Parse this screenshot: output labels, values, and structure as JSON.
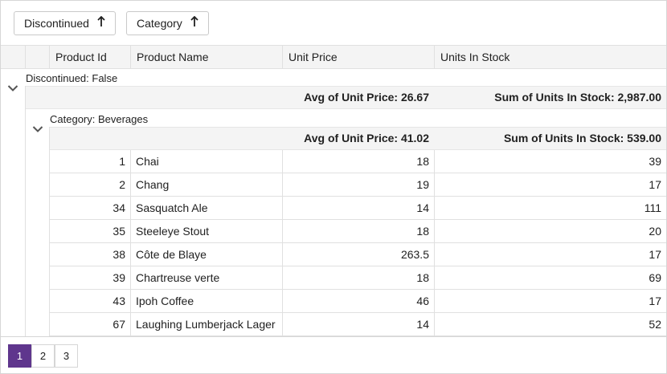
{
  "group_panel": {
    "chips": [
      {
        "label": "Discontinued",
        "sort": "ascending"
      },
      {
        "label": "Category",
        "sort": "ascending"
      }
    ]
  },
  "columns": [
    "Product Id",
    "Product Name",
    "Unit Price",
    "Units In Stock"
  ],
  "group_level1": {
    "caption": "Discontinued: False",
    "avg_unit_price": "Avg of Unit Price: 26.67",
    "sum_units_in_stock": "Sum of Units In Stock: 2,987.00"
  },
  "group_level2": {
    "caption": "Category: Beverages",
    "avg_unit_price": "Avg of Unit Price: 41.02",
    "sum_units_in_stock": "Sum of Units In Stock: 539.00"
  },
  "rows": [
    {
      "id": "1",
      "name": "Chai",
      "price": "18",
      "stock": "39"
    },
    {
      "id": "2",
      "name": "Chang",
      "price": "19",
      "stock": "17"
    },
    {
      "id": "34",
      "name": "Sasquatch Ale",
      "price": "14",
      "stock": "111"
    },
    {
      "id": "35",
      "name": "Steeleye Stout",
      "price": "18",
      "stock": "20"
    },
    {
      "id": "38",
      "name": "Côte de Blaye",
      "price": "263.5",
      "stock": "17"
    },
    {
      "id": "39",
      "name": "Chartreuse verte",
      "price": "18",
      "stock": "69"
    },
    {
      "id": "43",
      "name": "Ipoh Coffee",
      "price": "46",
      "stock": "17"
    },
    {
      "id": "67",
      "name": "Laughing Lumberjack Lager",
      "price": "14",
      "stock": "52"
    }
  ],
  "pager": {
    "pages": [
      "1",
      "2",
      "3"
    ],
    "current": "1"
  },
  "colors": {
    "accent": "#5f368d",
    "header_bg": "#f4f4f4",
    "border": "#e0e0e0"
  },
  "icons": {
    "sort": "arrow-up-icon",
    "expander": "chevron-down-icon"
  }
}
